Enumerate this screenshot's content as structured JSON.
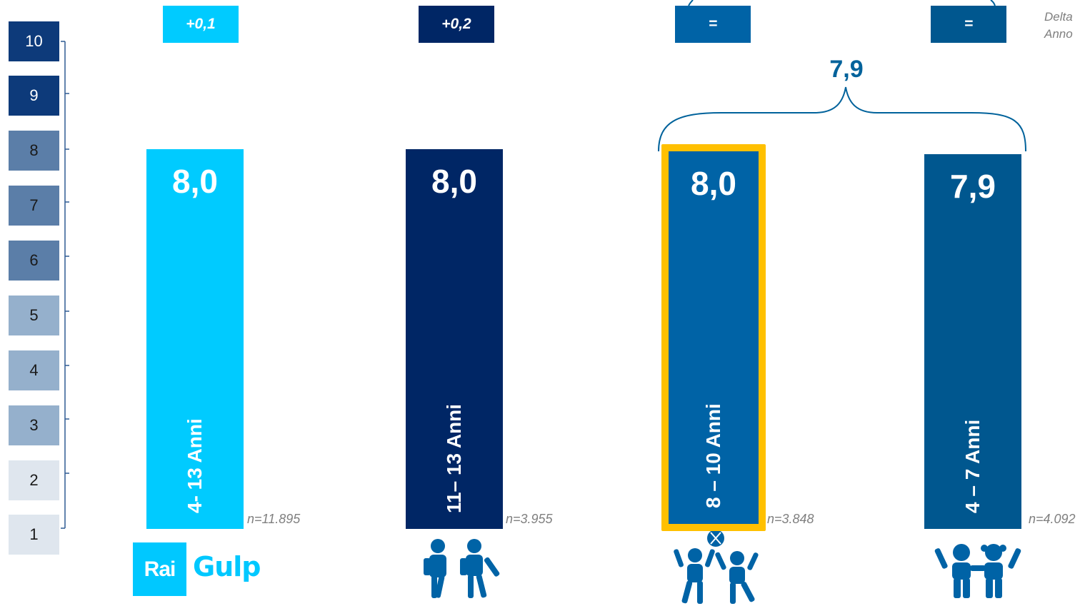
{
  "rating_scale": {
    "levels": [
      "10",
      "9",
      "8",
      "7",
      "6",
      "5",
      "4",
      "3",
      "2",
      "1"
    ],
    "colors": [
      "#0d3a7a",
      "#0d3a7a",
      "#5b7ea8",
      "#5b7ea8",
      "#5b7ea8",
      "#95b0cc",
      "#95b0cc",
      "#95b0cc",
      "#dfe6ee",
      "#dfe6ee"
    ]
  },
  "delta_caption": {
    "line1": "Delta",
    "line2": "Anno"
  },
  "group": {
    "value_label": "7,9",
    "brace_color": "#00629b"
  },
  "bars": [
    {
      "value": 8.0,
      "value_label": "8,0",
      "age_label": "4- 13 Anni",
      "sample": "n=11.895",
      "delta": "+0,1",
      "color": "#00cbff",
      "icon": "rai-gulp-logo",
      "highlighted": false
    },
    {
      "value": 8.0,
      "value_label": "8,0",
      "age_label": "11– 13 Anni",
      "sample": "n=3.955",
      "delta": "+0,2",
      "color": "#002665",
      "icon": "students-icon",
      "highlighted": false
    },
    {
      "value": 8.0,
      "value_label": "8,0",
      "age_label": "8 – 10 Anni",
      "sample": "n=3.848",
      "delta": "=",
      "color": "#0063a6",
      "icon": "kids-playing-ball-icon",
      "highlighted": true,
      "highlight_color": "#ffc000"
    },
    {
      "value": 7.9,
      "value_label": "7,9",
      "age_label": "4 – 7 Anni",
      "sample": "n=4.092",
      "delta": "=",
      "color": "#00578f",
      "icon": "small-children-icon",
      "highlighted": false
    }
  ],
  "logo": {
    "rai": "Rai",
    "gulp": "Gulp"
  },
  "chart_data": {
    "type": "bar",
    "categories": [
      "4- 13 Anni",
      "11– 13 Anni",
      "8 – 10 Anni",
      "4 – 7 Anni"
    ],
    "values": [
      8.0,
      8.0,
      8.0,
      7.9
    ],
    "value_labels": [
      "8,0",
      "8,0",
      "8,0",
      "7,9"
    ],
    "samples": [
      "n=11.895",
      "n=3.955",
      "n=3.848",
      "n=4.092"
    ],
    "delta_year": [
      "+0,1",
      "+0,2",
      "=",
      "="
    ],
    "group_value": "7,9",
    "y_scale_ticks": [
      1,
      2,
      3,
      4,
      5,
      6,
      7,
      8,
      9,
      10
    ],
    "ylim": [
      0,
      10
    ],
    "grid": false,
    "legend": "none"
  }
}
